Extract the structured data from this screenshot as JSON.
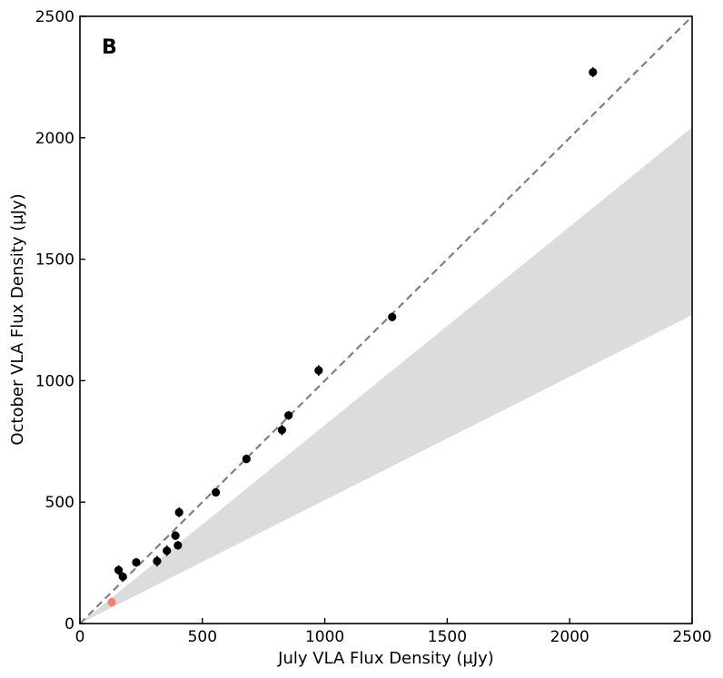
{
  "chart_data": {
    "type": "scatter",
    "panel_label": "B",
    "xlabel": "July VLA Flux Density (μJy)",
    "ylabel": "October VLA Flux Density (μJy)",
    "xlim": [
      0,
      2500
    ],
    "ylim": [
      0,
      2500
    ],
    "xticks": [
      "0",
      "500",
      "1000",
      "1500",
      "2000",
      "2500"
    ],
    "yticks": [
      "0",
      "500",
      "1000",
      "1500",
      "2000",
      "2500"
    ],
    "grid": false,
    "reference_line": {
      "style": "dashed",
      "color": "#808080",
      "slope": 1
    },
    "shaded_band": {
      "color": "#dcdcdc",
      "upper_slope": 0.817,
      "lower_slope": 0.508
    },
    "series": [
      {
        "marker_color": "#000000",
        "points": [
          {
            "x": 158,
            "y": 220,
            "err": 20
          },
          {
            "x": 175,
            "y": 193,
            "err": 18
          },
          {
            "x": 230,
            "y": 252,
            "err": 18
          },
          {
            "x": 315,
            "y": 257,
            "err": 22
          },
          {
            "x": 355,
            "y": 300,
            "err": 22
          },
          {
            "x": 390,
            "y": 362,
            "err": 18
          },
          {
            "x": 400,
            "y": 322,
            "err": 18
          },
          {
            "x": 405,
            "y": 458,
            "err": 20
          },
          {
            "x": 555,
            "y": 540,
            "err": 15
          },
          {
            "x": 680,
            "y": 678,
            "err": 18
          },
          {
            "x": 825,
            "y": 797,
            "err": 22
          },
          {
            "x": 852,
            "y": 857,
            "err": 18
          },
          {
            "x": 975,
            "y": 1042,
            "err": 22
          },
          {
            "x": 1275,
            "y": 1262,
            "err": 18
          },
          {
            "x": 2095,
            "y": 2270,
            "err": 20
          }
        ]
      },
      {
        "marker_color": "#f08070",
        "points": [
          {
            "x": 130,
            "y": 88,
            "err": 18
          }
        ]
      }
    ]
  }
}
